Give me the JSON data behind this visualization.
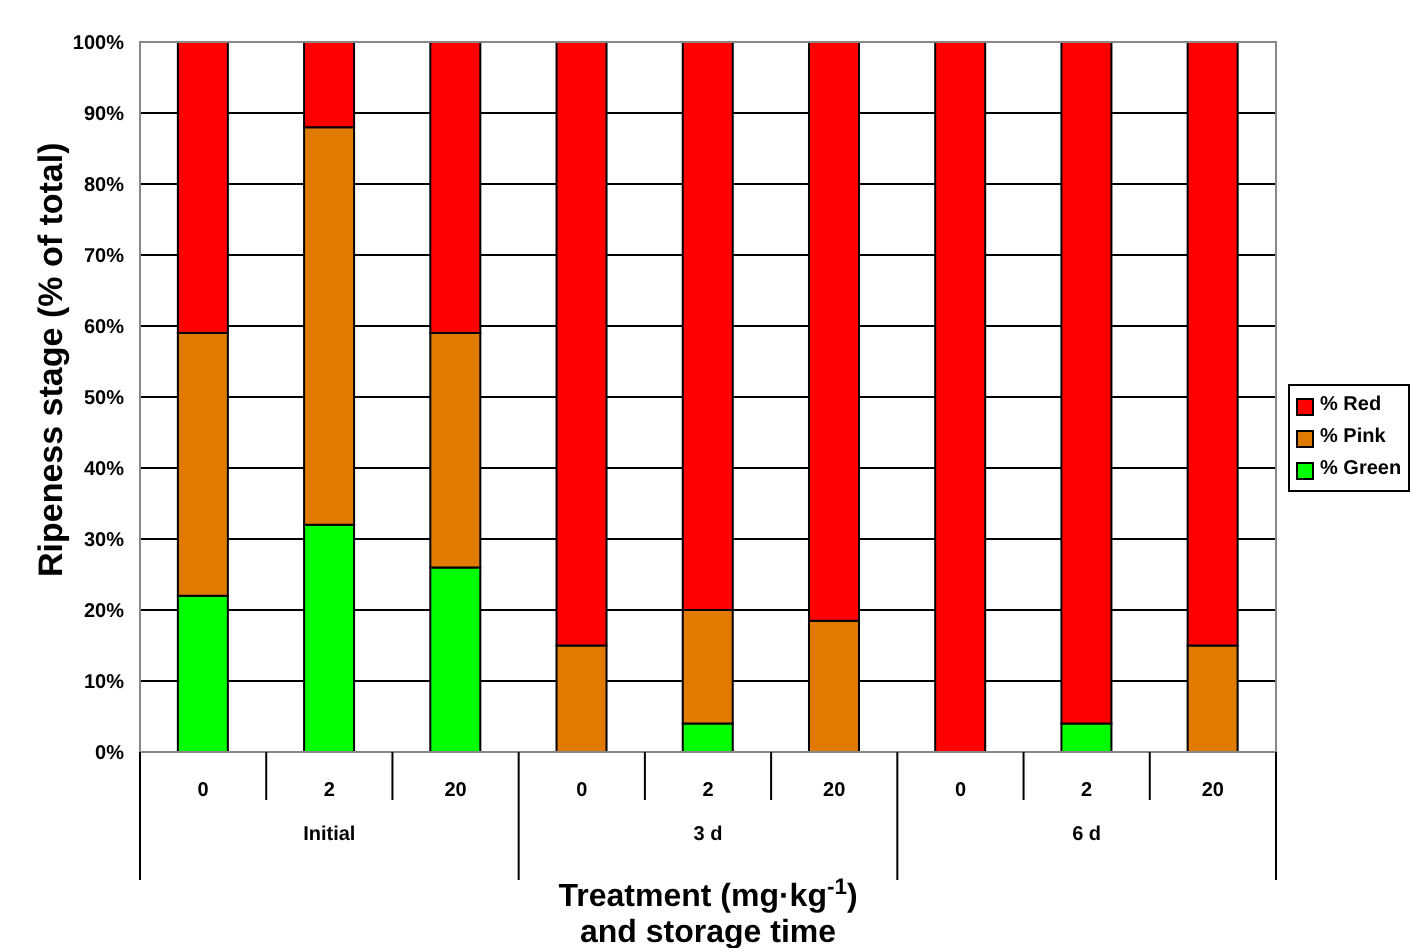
{
  "chart_data": {
    "type": "bar",
    "stacked": true,
    "ylabel": "Ripeness stage (% of total)",
    "xlabel": "Treatment (mg·kg$^{-1}$)\nand storage time",
    "categories": [
      "0",
      "2",
      "20",
      "0",
      "2",
      "20",
      "0",
      "2",
      "20"
    ],
    "annotations": [
      "Initial",
      "3 d",
      "6 d"
    ],
    "series": [
      {
        "name": "% Green",
        "color": "#00ff00",
        "values": [
          22,
          32,
          26,
          0,
          4,
          0,
          0,
          4,
          0
        ]
      },
      {
        "name": "% Pink",
        "color": "#e07a00",
        "values": [
          37,
          56,
          33,
          15,
          16,
          18.5,
          0,
          0,
          15
        ]
      },
      {
        "name": "% Red",
        "color": "#ff0000",
        "values": [
          41,
          12,
          41,
          85,
          80,
          81.5,
          100,
          96,
          85
        ]
      }
    ],
    "ylim": [
      0,
      100
    ],
    "yticks": [
      {
        "value": 0,
        "label": "0%"
      },
      {
        "value": 10,
        "label": "10%"
      },
      {
        "value": 20,
        "label": "20%"
      },
      {
        "value": 30,
        "label": "30%"
      },
      {
        "value": 40,
        "label": "40%"
      },
      {
        "value": 50,
        "label": "50%"
      },
      {
        "value": 60,
        "label": "60%"
      },
      {
        "value": 70,
        "label": "70%"
      },
      {
        "value": 80,
        "label": "80%"
      },
      {
        "value": 90,
        "label": "90%"
      },
      {
        "value": 100,
        "label": "100%"
      }
    ],
    "grid": "y",
    "legend": "right"
  }
}
